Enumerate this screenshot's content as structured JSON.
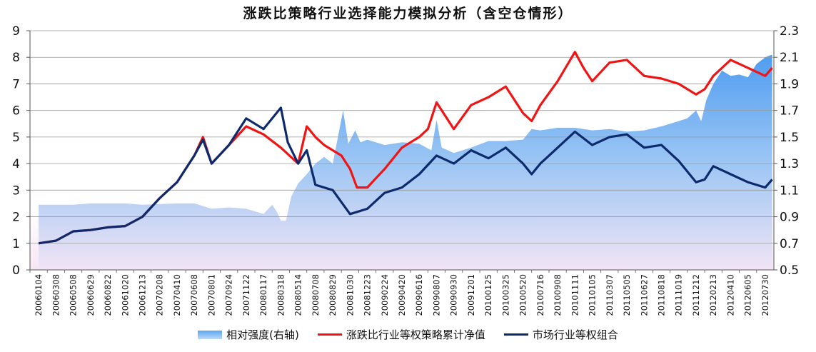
{
  "chart_data": {
    "type": "line",
    "title": "涨跌比策略行业选择能力模拟分析（含空仓情形）",
    "y_left": {
      "lim": [
        0,
        9
      ],
      "ticks": [
        "0",
        "1",
        "2",
        "3",
        "4",
        "5",
        "6",
        "7",
        "8",
        "9"
      ]
    },
    "y_right": {
      "lim": [
        0.5,
        2.3
      ],
      "ticks": [
        "0.5",
        "0.7",
        "0.9",
        "1.1",
        "1.3",
        "1.5",
        "1.7",
        "1.9",
        "2.1",
        "2.3"
      ]
    },
    "x_tick_labels": [
      "20060104",
      "20060308",
      "20060508",
      "20060629",
      "20060822",
      "20061020",
      "20061213",
      "20070208",
      "20070410",
      "20070608",
      "20070801",
      "20070924",
      "20071122",
      "20080117",
      "20080318",
      "20080514",
      "20080708",
      "20080829",
      "20081030",
      "20081223",
      "20090224",
      "20090420",
      "20090616",
      "20090807",
      "20090930",
      "20091201",
      "20100125",
      "20100325",
      "20100520",
      "20100716",
      "20100908",
      "20101111",
      "20110105",
      "20110307",
      "20110505",
      "20110627",
      "20110818",
      "20111019",
      "20111212",
      "20120213",
      "20120410",
      "20120605",
      "20120730"
    ],
    "series": [
      {
        "name": "相对强度(右轴)",
        "kind": "area",
        "axis": "right",
        "color": "#6fb3f2",
        "points": [
          [
            0,
            0.99
          ],
          [
            2,
            0.99
          ],
          [
            3,
            1.0
          ],
          [
            5,
            1.0
          ],
          [
            6,
            0.99
          ],
          [
            8,
            1.0
          ],
          [
            9,
            1.0
          ],
          [
            10,
            0.96
          ],
          [
            11,
            0.97
          ],
          [
            12,
            0.96
          ],
          [
            13,
            0.92
          ],
          [
            13.5,
            0.99
          ],
          [
            13.8,
            0.93
          ],
          [
            14,
            0.87
          ],
          [
            14.3,
            0.87
          ],
          [
            14.6,
            1.05
          ],
          [
            15,
            1.15
          ],
          [
            15.5,
            1.22
          ],
          [
            16,
            1.3
          ],
          [
            16.5,
            1.35
          ],
          [
            17,
            1.3
          ],
          [
            17.6,
            1.7
          ],
          [
            17.9,
            1.45
          ],
          [
            18.3,
            1.55
          ],
          [
            18.6,
            1.46
          ],
          [
            19,
            1.48
          ],
          [
            20,
            1.44
          ],
          [
            21,
            1.46
          ],
          [
            22,
            1.45
          ],
          [
            22.7,
            1.4
          ],
          [
            23,
            1.63
          ],
          [
            23.3,
            1.42
          ],
          [
            24,
            1.38
          ],
          [
            25,
            1.42
          ],
          [
            26,
            1.47
          ],
          [
            27,
            1.47
          ],
          [
            28,
            1.48
          ],
          [
            28.5,
            1.56
          ],
          [
            29,
            1.55
          ],
          [
            30,
            1.57
          ],
          [
            31,
            1.57
          ],
          [
            32,
            1.55
          ],
          [
            33,
            1.56
          ],
          [
            34,
            1.54
          ],
          [
            35,
            1.55
          ],
          [
            36,
            1.58
          ],
          [
            37,
            1.62
          ],
          [
            37.5,
            1.64
          ],
          [
            38,
            1.7
          ],
          [
            38.3,
            1.62
          ],
          [
            38.6,
            1.78
          ],
          [
            39,
            1.9
          ],
          [
            39.5,
            2.0
          ],
          [
            40,
            1.96
          ],
          [
            40.5,
            1.97
          ],
          [
            41,
            1.95
          ],
          [
            41.5,
            2.05
          ],
          [
            42,
            2.1
          ],
          [
            42.4,
            2.12
          ]
        ]
      },
      {
        "name": "涨跌比行业等权策略累计净值",
        "kind": "line",
        "axis": "left",
        "color": "#f01414",
        "points": [
          [
            0,
            1.0
          ],
          [
            1,
            1.1
          ],
          [
            2,
            1.45
          ],
          [
            3,
            1.5
          ],
          [
            4,
            1.6
          ],
          [
            5,
            1.65
          ],
          [
            6,
            2.0
          ],
          [
            7,
            2.7
          ],
          [
            8,
            3.3
          ],
          [
            9,
            4.3
          ],
          [
            9.5,
            5.0
          ],
          [
            10,
            4.0
          ],
          [
            11,
            4.7
          ],
          [
            12,
            5.4
          ],
          [
            13,
            5.1
          ],
          [
            14,
            4.6
          ],
          [
            15,
            4.0
          ],
          [
            15.5,
            5.4
          ],
          [
            16,
            5.0
          ],
          [
            16.5,
            4.7
          ],
          [
            17,
            4.5
          ],
          [
            17.5,
            4.3
          ],
          [
            18,
            3.8
          ],
          [
            18.4,
            3.1
          ],
          [
            19,
            3.1
          ],
          [
            20,
            3.8
          ],
          [
            21,
            4.6
          ],
          [
            22,
            5.0
          ],
          [
            22.5,
            5.3
          ],
          [
            23,
            6.3
          ],
          [
            24,
            5.3
          ],
          [
            25,
            6.2
          ],
          [
            26,
            6.5
          ],
          [
            27,
            6.9
          ],
          [
            28,
            5.9
          ],
          [
            28.5,
            5.6
          ],
          [
            29,
            6.2
          ],
          [
            30,
            7.1
          ],
          [
            31,
            8.2
          ],
          [
            31.5,
            7.6
          ],
          [
            32,
            7.1
          ],
          [
            33,
            7.8
          ],
          [
            34,
            7.9
          ],
          [
            35,
            7.3
          ],
          [
            36,
            7.2
          ],
          [
            37,
            7.0
          ],
          [
            38,
            6.6
          ],
          [
            38.5,
            6.8
          ],
          [
            39,
            7.3
          ],
          [
            40,
            7.9
          ],
          [
            41,
            7.6
          ],
          [
            42,
            7.3
          ],
          [
            42.4,
            7.6
          ]
        ]
      },
      {
        "name": "市场行业等权组合",
        "kind": "line",
        "axis": "left",
        "color": "#0d2a6c",
        "points": [
          [
            0,
            1.0
          ],
          [
            1,
            1.1
          ],
          [
            2,
            1.45
          ],
          [
            3,
            1.5
          ],
          [
            4,
            1.6
          ],
          [
            5,
            1.65
          ],
          [
            6,
            2.0
          ],
          [
            7,
            2.7
          ],
          [
            8,
            3.3
          ],
          [
            9,
            4.3
          ],
          [
            9.5,
            4.9
          ],
          [
            10,
            4.0
          ],
          [
            11,
            4.7
          ],
          [
            12,
            5.7
          ],
          [
            13,
            5.3
          ],
          [
            14,
            6.1
          ],
          [
            14.4,
            4.8
          ],
          [
            15,
            4.0
          ],
          [
            15.5,
            4.5
          ],
          [
            16,
            3.2
          ],
          [
            17,
            3.0
          ],
          [
            18,
            2.1
          ],
          [
            19,
            2.3
          ],
          [
            20,
            2.9
          ],
          [
            21,
            3.1
          ],
          [
            22,
            3.6
          ],
          [
            23,
            4.3
          ],
          [
            24,
            4.0
          ],
          [
            25,
            4.5
          ],
          [
            26,
            4.2
          ],
          [
            27,
            4.6
          ],
          [
            28,
            4.0
          ],
          [
            28.5,
            3.6
          ],
          [
            29,
            4.0
          ],
          [
            30,
            4.6
          ],
          [
            31,
            5.2
          ],
          [
            32,
            4.7
          ],
          [
            33,
            5.0
          ],
          [
            34,
            5.1
          ],
          [
            35,
            4.6
          ],
          [
            36,
            4.7
          ],
          [
            37,
            4.1
          ],
          [
            38,
            3.3
          ],
          [
            38.5,
            3.4
          ],
          [
            39,
            3.9
          ],
          [
            40,
            3.6
          ],
          [
            41,
            3.3
          ],
          [
            42,
            3.1
          ],
          [
            42.4,
            3.4
          ]
        ]
      }
    ],
    "legend_position": "bottom"
  }
}
